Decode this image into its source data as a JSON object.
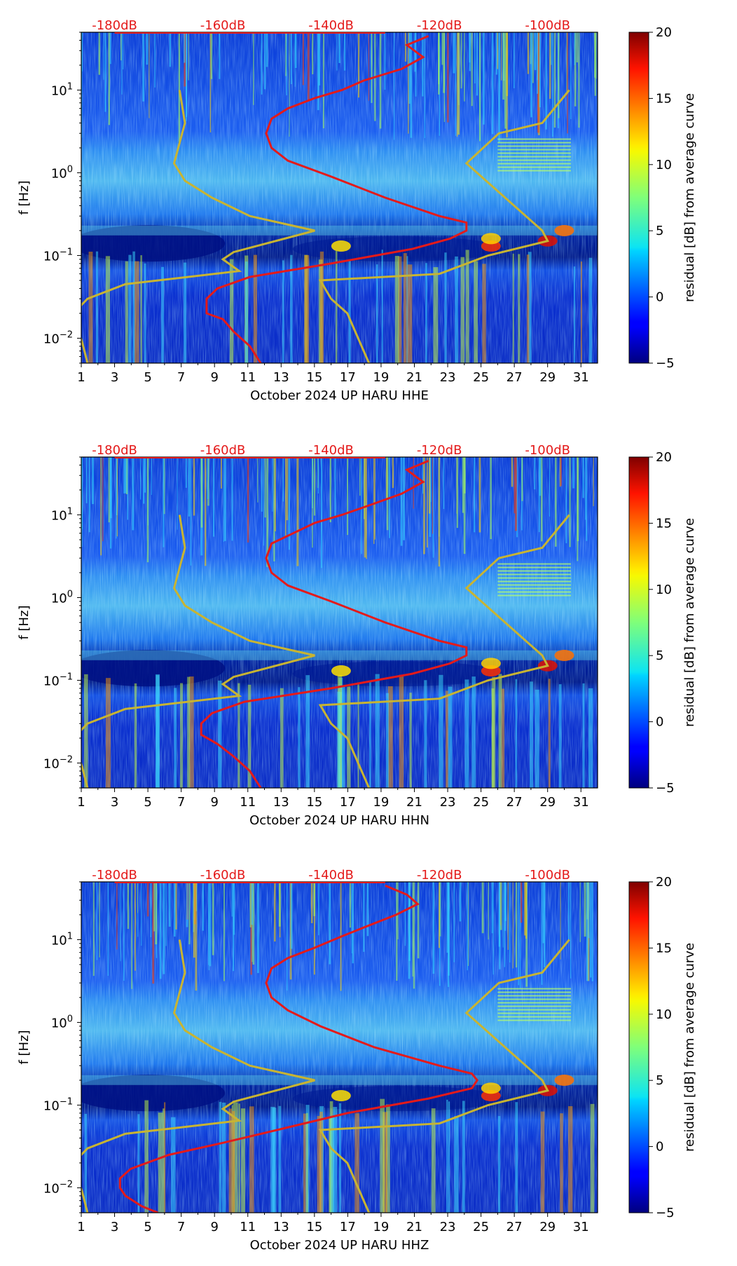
{
  "chart_data": {
    "type": "heatmap",
    "shared": {
      "x_ticks": [
        "1",
        "3",
        "5",
        "7",
        "9",
        "11",
        "13",
        "15",
        "17",
        "19",
        "21",
        "23",
        "25",
        "27",
        "29",
        "31"
      ],
      "x_range": [
        1,
        32
      ],
      "y_label": "f [Hz]",
      "y_range": [
        0.005,
        50
      ],
      "y_scale": "log",
      "y_ticks": [
        {
          "value": 0.01,
          "base": "10",
          "exp": "−2"
        },
        {
          "value": 0.1,
          "base": "10",
          "exp": "−1"
        },
        {
          "value": 1,
          "base": "10",
          "exp": "0"
        },
        {
          "value": 10,
          "base": "10",
          "exp": "1"
        }
      ],
      "top_ticks": [
        "-180dB",
        "-160dB",
        "-140dB",
        "-120dB",
        "-100dB"
      ],
      "colorbar": {
        "label": "residual [dB] from average curve",
        "range": [
          -5,
          20
        ],
        "ticks": [
          "−5",
          "0",
          "5",
          "10",
          "15",
          "20"
        ],
        "colormap": "jet"
      }
    },
    "panels": [
      {
        "xlabel": "October 2024 UP HARU  HHE",
        "red_curve": [
          [
            -153,
            0.005
          ],
          [
            -155,
            0.008
          ],
          [
            -158,
            0.012
          ],
          [
            -160,
            0.017
          ],
          [
            -163,
            0.02
          ],
          [
            -163,
            0.03
          ],
          [
            -161,
            0.04
          ],
          [
            -155,
            0.055
          ],
          [
            -140,
            0.08
          ],
          [
            -125,
            0.12
          ],
          [
            -118,
            0.16
          ],
          [
            -115,
            0.2
          ],
          [
            -115,
            0.25
          ],
          [
            -120,
            0.3
          ],
          [
            -130,
            0.5
          ],
          [
            -140,
            0.9
          ],
          [
            -148,
            1.4
          ],
          [
            -151,
            2.0
          ],
          [
            -152,
            3.0
          ],
          [
            -151,
            4.5
          ],
          [
            -148,
            6.0
          ],
          [
            -143,
            8.0
          ],
          [
            -138,
            10
          ],
          [
            -134,
            13
          ],
          [
            -127,
            18
          ],
          [
            -123,
            25
          ],
          [
            -126,
            35
          ],
          [
            -122,
            45
          ]
        ],
        "yellow_curve": [
          [
            -185,
            0.005
          ],
          [
            -186,
            0.009
          ],
          [
            -187,
            0.014
          ],
          [
            -187,
            0.022
          ],
          [
            -185,
            0.03
          ],
          [
            -178,
            0.045
          ],
          [
            -157,
            0.065
          ],
          [
            -160,
            0.09
          ],
          [
            -158,
            0.11
          ],
          [
            -143,
            0.2
          ],
          [
            -155,
            0.3
          ],
          [
            -162,
            0.5
          ],
          [
            -167,
            0.8
          ],
          [
            -169,
            1.3
          ],
          [
            -167,
            4
          ],
          [
            -168,
            10
          ]
        ],
        "yellow_right": [
          [
            -133,
            0.005
          ],
          [
            -135,
            0.01
          ],
          [
            -137,
            0.02
          ],
          [
            -140,
            0.03
          ],
          [
            -142,
            0.05
          ],
          [
            -120,
            0.06
          ],
          [
            -111,
            0.1
          ],
          [
            -100,
            0.15
          ],
          [
            -101,
            0.2
          ],
          [
            -115,
            1.3
          ],
          [
            -109,
            3
          ],
          [
            -101,
            4
          ],
          [
            -96,
            10
          ]
        ]
      },
      {
        "xlabel": "October 2024 UP HARU  HHN",
        "red_curve": [
          [
            -153,
            0.005
          ],
          [
            -155,
            0.008
          ],
          [
            -158,
            0.012
          ],
          [
            -161,
            0.017
          ],
          [
            -164,
            0.022
          ],
          [
            -164,
            0.03
          ],
          [
            -162,
            0.04
          ],
          [
            -156,
            0.055
          ],
          [
            -140,
            0.08
          ],
          [
            -125,
            0.12
          ],
          [
            -118,
            0.16
          ],
          [
            -115,
            0.2
          ],
          [
            -115,
            0.25
          ],
          [
            -120,
            0.3
          ],
          [
            -130,
            0.5
          ],
          [
            -140,
            0.9
          ],
          [
            -148,
            1.4
          ],
          [
            -151,
            2.0
          ],
          [
            -152,
            3.0
          ],
          [
            -151,
            4.5
          ],
          [
            -147,
            6.0
          ],
          [
            -143,
            8.0
          ],
          [
            -138,
            10
          ],
          [
            -133,
            13
          ],
          [
            -127,
            18
          ],
          [
            -123,
            25
          ],
          [
            -126,
            35
          ],
          [
            -122,
            45
          ]
        ],
        "yellow_curve": [
          [
            -185,
            0.005
          ],
          [
            -186,
            0.009
          ],
          [
            -187,
            0.014
          ],
          [
            -187,
            0.022
          ],
          [
            -185,
            0.03
          ],
          [
            -178,
            0.045
          ],
          [
            -157,
            0.065
          ],
          [
            -160,
            0.09
          ],
          [
            -158,
            0.11
          ],
          [
            -143,
            0.2
          ],
          [
            -155,
            0.3
          ],
          [
            -162,
            0.5
          ],
          [
            -167,
            0.8
          ],
          [
            -169,
            1.3
          ],
          [
            -167,
            4
          ],
          [
            -168,
            10
          ]
        ],
        "yellow_right": [
          [
            -133,
            0.005
          ],
          [
            -135,
            0.01
          ],
          [
            -137,
            0.02
          ],
          [
            -140,
            0.03
          ],
          [
            -142,
            0.05
          ],
          [
            -120,
            0.06
          ],
          [
            -111,
            0.1
          ],
          [
            -100,
            0.15
          ],
          [
            -101,
            0.2
          ],
          [
            -115,
            1.3
          ],
          [
            -109,
            3
          ],
          [
            -101,
            4
          ],
          [
            -96,
            10
          ]
        ]
      },
      {
        "xlabel": "October 2024 UP HARU  HHZ",
        "red_curve": [
          [
            -172,
            0.005
          ],
          [
            -175,
            0.006
          ],
          [
            -178,
            0.008
          ],
          [
            -179,
            0.01
          ],
          [
            -179,
            0.013
          ],
          [
            -177,
            0.017
          ],
          [
            -170,
            0.025
          ],
          [
            -160,
            0.035
          ],
          [
            -150,
            0.05
          ],
          [
            -137,
            0.08
          ],
          [
            -122,
            0.12
          ],
          [
            -114,
            0.16
          ],
          [
            -113,
            0.2
          ],
          [
            -114,
            0.24
          ],
          [
            -120,
            0.3
          ],
          [
            -132,
            0.5
          ],
          [
            -142,
            0.9
          ],
          [
            -148,
            1.4
          ],
          [
            -151,
            2.0
          ],
          [
            -152,
            3.0
          ],
          [
            -151,
            4.5
          ],
          [
            -148,
            6.0
          ],
          [
            -143,
            8.0
          ],
          [
            -138,
            11
          ],
          [
            -134,
            14
          ],
          [
            -128,
            20
          ],
          [
            -124,
            27
          ],
          [
            -126,
            35
          ],
          [
            -130,
            45
          ]
        ],
        "yellow_curve": [
          [
            -185,
            0.005
          ],
          [
            -186,
            0.009
          ],
          [
            -187,
            0.014
          ],
          [
            -187,
            0.022
          ],
          [
            -185,
            0.03
          ],
          [
            -178,
            0.045
          ],
          [
            -157,
            0.065
          ],
          [
            -160,
            0.09
          ],
          [
            -158,
            0.11
          ],
          [
            -143,
            0.2
          ],
          [
            -155,
            0.3
          ],
          [
            -162,
            0.5
          ],
          [
            -167,
            0.8
          ],
          [
            -169,
            1.3
          ],
          [
            -167,
            4
          ],
          [
            -168,
            10
          ]
        ],
        "yellow_right": [
          [
            -133,
            0.005
          ],
          [
            -135,
            0.01
          ],
          [
            -137,
            0.02
          ],
          [
            -140,
            0.03
          ],
          [
            -142,
            0.05
          ],
          [
            -120,
            0.06
          ],
          [
            -111,
            0.1
          ],
          [
            -100,
            0.15
          ],
          [
            -101,
            0.2
          ],
          [
            -115,
            1.3
          ],
          [
            -109,
            3
          ],
          [
            -101,
            4
          ],
          [
            -96,
            10
          ]
        ]
      }
    ]
  }
}
